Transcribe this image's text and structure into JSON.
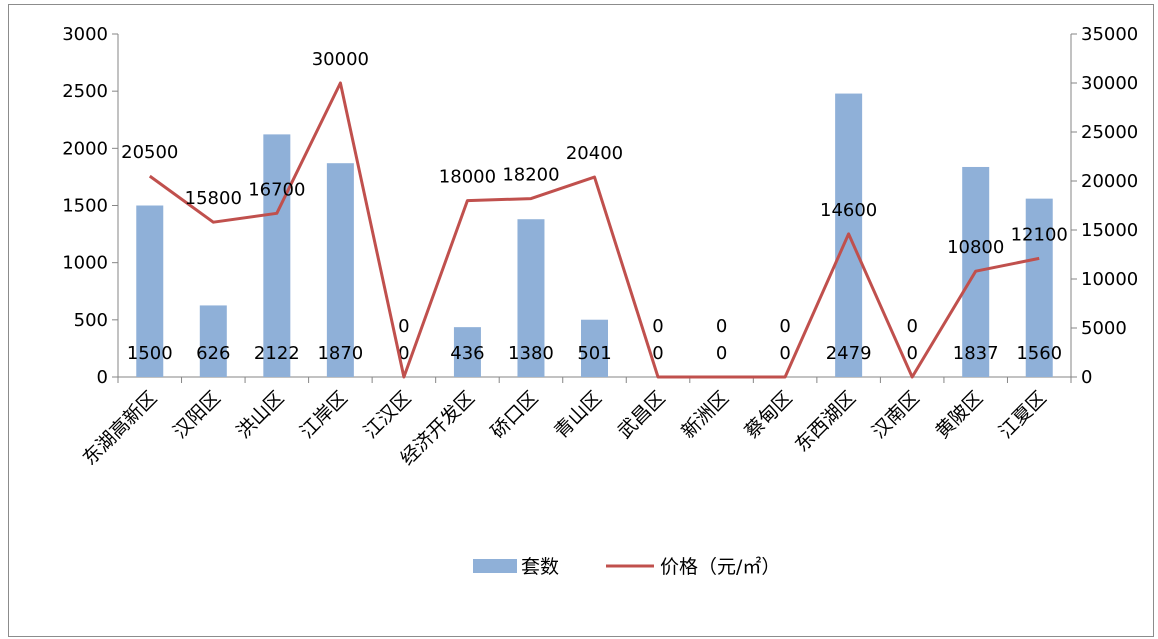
{
  "chart_data": {
    "type": "bar",
    "categories": [
      "东湖高新区",
      "汉阳区",
      "洪山区",
      "江岸区",
      "江汉区",
      "经济开发区",
      "硚口区",
      "青山区",
      "武昌区",
      "新洲区",
      "蔡甸区",
      "东西湖区",
      "汉南区",
      "黄陂区",
      "江夏区"
    ],
    "series": [
      {
        "name": "套数",
        "type": "bar",
        "axis": "left",
        "color": "#8fb0d8",
        "values": [
          1500,
          626,
          2122,
          1870,
          0,
          436,
          1380,
          501,
          0,
          0,
          0,
          2479,
          0,
          1837,
          1560
        ],
        "labels": [
          "1500",
          "626",
          "2122",
          "1870",
          "0",
          "436",
          "1380",
          "501",
          "0",
          "0",
          "0",
          "2479",
          "0",
          "1837",
          "1560"
        ]
      },
      {
        "name": "价格（元/㎡）",
        "type": "line",
        "axis": "right",
        "color": "#c0504d",
        "values": [
          20500,
          15800,
          16700,
          30000,
          0,
          18000,
          18200,
          20400,
          0,
          0,
          0,
          14600,
          0,
          10800,
          12100
        ],
        "labels": [
          "20500",
          "15800",
          "16700",
          "30000",
          "0",
          "18000",
          "18200",
          "20400",
          "0",
          "0",
          "0",
          "14600",
          "0",
          "10800",
          "12100"
        ]
      }
    ],
    "y_left": {
      "min": 0,
      "max": 3000,
      "ticks": [
        "0",
        "500",
        "1000",
        "1500",
        "2000",
        "2500",
        "3000"
      ]
    },
    "y_right": {
      "min": 0,
      "max": 35000,
      "ticks": [
        "0",
        "5000",
        "10000",
        "15000",
        "20000",
        "25000",
        "30000",
        "35000"
      ]
    },
    "grid": false,
    "legend": "bottom"
  }
}
